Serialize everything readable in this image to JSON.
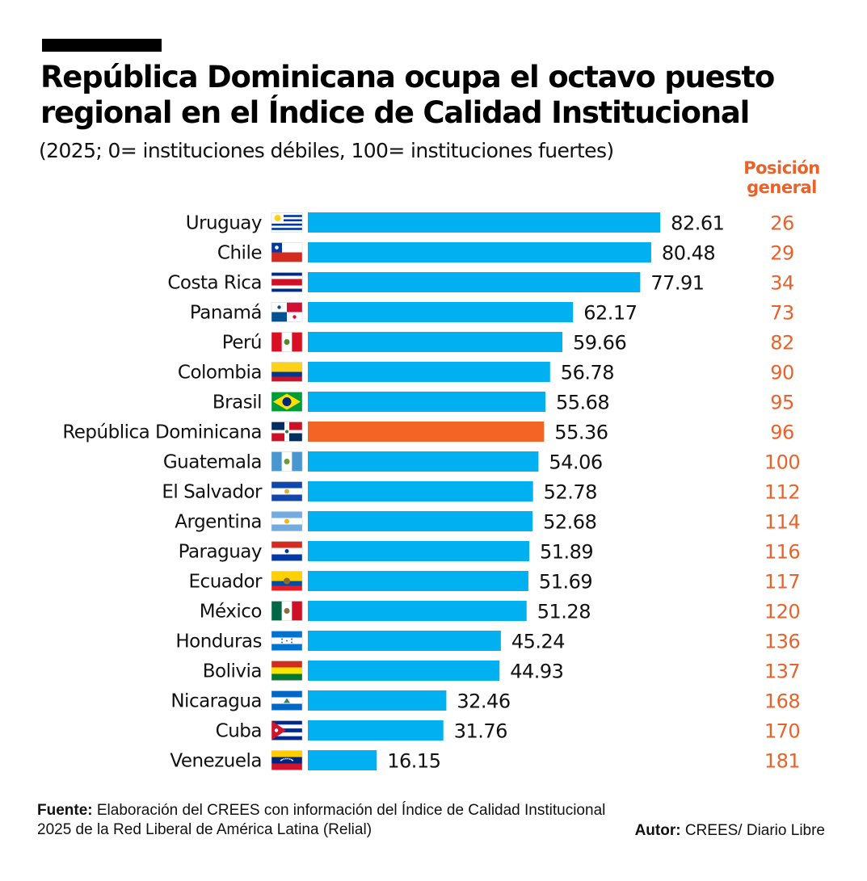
{
  "header": {
    "title_line1": "República Dominicana ocupa el octavo puesto",
    "title_line2": "regional en el Índice de Calidad Institucional",
    "subtitle": "(2025; 0= instituciones débiles, 100= instituciones fuertes)",
    "position_header_line1": "Posición",
    "position_header_line2": "general"
  },
  "colors": {
    "bar": "#00b0f0",
    "highlight_bar": "#f26524",
    "rank_text": "#e8622c"
  },
  "chart_data": {
    "type": "bar",
    "orientation": "horizontal",
    "title": "República Dominicana ocupa el octavo puesto regional en el Índice de Calidad Institucional",
    "subtitle": "(2025; 0= instituciones débiles, 100= instituciones fuertes)",
    "xlim": [
      0,
      100
    ],
    "highlight": "República Dominicana",
    "categories": [
      "Uruguay",
      "Chile",
      "Costa Rica",
      "Panamá",
      "Perú",
      "Colombia",
      "Brasil",
      "República Dominicana",
      "Guatemala",
      "El Salvador",
      "Argentina",
      "Paraguay",
      "Ecuador",
      "México",
      "Honduras",
      "Bolivia",
      "Nicaragua",
      "Cuba",
      "Venezuela"
    ],
    "values": [
      82.61,
      80.48,
      77.91,
      62.17,
      59.66,
      56.78,
      55.68,
      55.36,
      54.06,
      52.78,
      52.68,
      51.89,
      51.69,
      51.28,
      45.24,
      44.93,
      32.46,
      31.76,
      16.15
    ],
    "value_labels": [
      "82.61",
      "80.48",
      "77.91",
      "62.17",
      "59.66",
      "56.78",
      "55.68",
      "55.36",
      "54.06",
      "52.78",
      "52.68",
      "51.89",
      "51.69",
      "51.28",
      "45.24",
      "44.93",
      "32.46",
      "31.76",
      "16.15"
    ],
    "ranks": [
      "26",
      "29",
      "34",
      "73",
      "82",
      "90",
      "95",
      "96",
      "100",
      "112",
      "114",
      "116",
      "117",
      "120",
      "136",
      "137",
      "168",
      "170",
      "181"
    ],
    "flags": [
      "uruguay-flag",
      "chile-flag",
      "costa-rica-flag",
      "panama-flag",
      "peru-flag",
      "colombia-flag",
      "brasil-flag",
      "republica-dominicana-flag",
      "guatemala-flag",
      "el-salvador-flag",
      "argentina-flag",
      "paraguay-flag",
      "ecuador-flag",
      "mexico-flag",
      "honduras-flag",
      "bolivia-flag",
      "nicaragua-flag",
      "cuba-flag",
      "venezuela-flag"
    ]
  },
  "footer": {
    "source_label": "Fuente:",
    "source_text": " Elaboración del CREES con información del Índice de Calidad Institucional 2025 de la Red Liberal de América Latina (Relial)",
    "author_label": "Autor:",
    "author_text": " CREES/ Diario Libre"
  }
}
